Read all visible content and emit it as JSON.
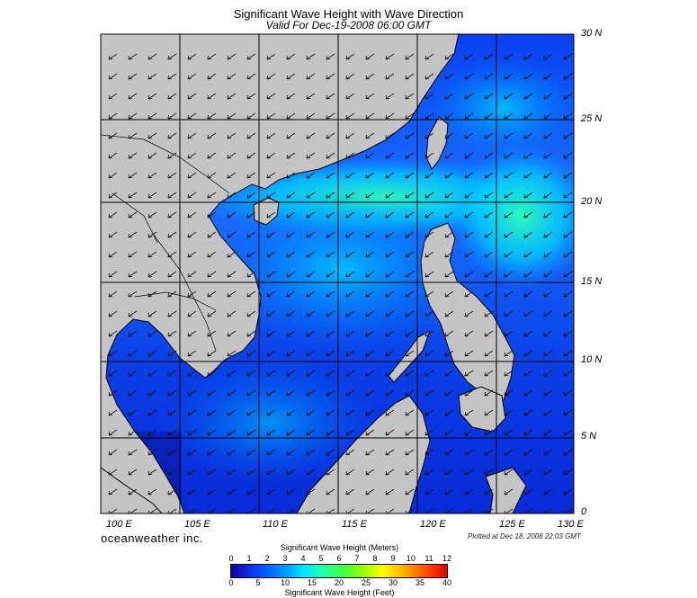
{
  "title": "Significant Wave Height with Wave Direction",
  "subtitle": "Valid For Dec-19-2008 06:00 GMT",
  "latitude_labels": [
    "30 N",
    "25 N",
    "20 N",
    "15 N",
    "10 N",
    "5 N",
    "0"
  ],
  "longitude_labels": [
    "100 E",
    "105 E",
    "110 E",
    "115 E",
    "120 E",
    "125 E",
    "130 E"
  ],
  "brand": "oceanweather inc.",
  "plotted_text": "Plotted at Dec 18, 2008 22:03 GMT",
  "colorbar": {
    "title_meters": "Significant Wave Height (Meters)",
    "title_feet": "Significant Wave Height (Feet)",
    "meter_ticks": [
      "0",
      "1",
      "2",
      "3",
      "4",
      "5",
      "6",
      "7",
      "8",
      "9",
      "10",
      "11",
      "12"
    ],
    "feet_ticks": [
      "0",
      "5",
      "10",
      "15",
      "20",
      "25",
      "30",
      "35",
      "40"
    ]
  },
  "colors": {
    "land": "#c4c4c4",
    "ocean_low": "#0a2be8",
    "ocean_mid": "#00a8ff",
    "ocean_high": "#20f5c0"
  },
  "map_extent": {
    "lon_min": 100,
    "lon_max": 130,
    "lat_min": 0,
    "lat_max": 30
  },
  "wave_direction": "from northeast"
}
